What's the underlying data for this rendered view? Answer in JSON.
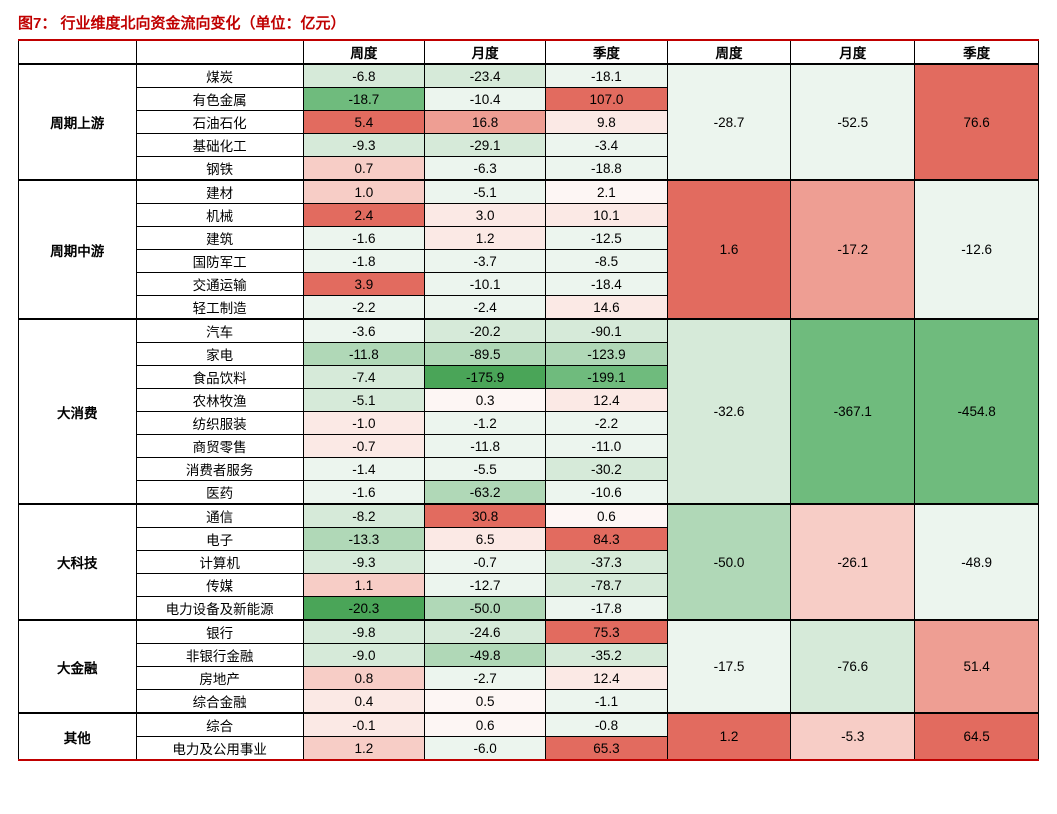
{
  "title": "图7：  行业维度北向资金流向变化（单位：亿元）",
  "headers": {
    "weekly": "周度",
    "monthly": "月度",
    "quarterly": "季度",
    "agg_weekly": "周度",
    "agg_monthly": "月度",
    "agg_quarterly": "季度"
  },
  "palette": {
    "pos_strong": "#e26b5f",
    "pos_mid": "#ee9e93",
    "pos_light": "#f7cdc6",
    "pos_faint": "#fbe9e5",
    "neutral": "#fdf6f4",
    "neg_faint": "#ecf5ee",
    "neg_light": "#d6ead9",
    "neg_mid": "#b0d8b7",
    "neg_strong": "#6fbb7d",
    "neg_max": "#4aa558",
    "agg_neutral": "#f5f5f5"
  },
  "sectors": [
    {
      "name": "周期上游",
      "agg": {
        "weekly": -28.7,
        "monthly": -52.5,
        "quarterly": 76.6
      },
      "agg_colors": {
        "weekly": "neg_faint",
        "monthly": "neg_faint",
        "quarterly": "pos_strong"
      },
      "rows": [
        {
          "ind": "煤炭",
          "weekly": -6.8,
          "monthly": -23.4,
          "quarterly": -18.1,
          "c": [
            "neg_light",
            "neg_light",
            "neg_faint"
          ]
        },
        {
          "ind": "有色金属",
          "weekly": -18.7,
          "monthly": -10.4,
          "quarterly": 107.0,
          "c": [
            "neg_strong",
            "neg_faint",
            "pos_strong"
          ]
        },
        {
          "ind": "石油石化",
          "weekly": 5.4,
          "monthly": 16.8,
          "quarterly": 9.8,
          "c": [
            "pos_strong",
            "pos_mid",
            "pos_faint"
          ]
        },
        {
          "ind": "基础化工",
          "weekly": -9.3,
          "monthly": -29.1,
          "quarterly": -3.4,
          "c": [
            "neg_light",
            "neg_light",
            "neg_faint"
          ]
        },
        {
          "ind": "钢铁",
          "weekly": 0.7,
          "monthly": -6.3,
          "quarterly": -18.8,
          "c": [
            "pos_light",
            "neg_faint",
            "neg_faint"
          ]
        }
      ]
    },
    {
      "name": "周期中游",
      "agg": {
        "weekly": 1.6,
        "monthly": -17.2,
        "quarterly": -12.6
      },
      "agg_colors": {
        "weekly": "pos_strong",
        "monthly": "pos_mid",
        "quarterly": "neg_faint"
      },
      "rows": [
        {
          "ind": "建材",
          "weekly": 1.0,
          "monthly": -5.1,
          "quarterly": 2.1,
          "c": [
            "pos_light",
            "neg_faint",
            "neutral"
          ]
        },
        {
          "ind": "机械",
          "weekly": 2.4,
          "monthly": 3.0,
          "quarterly": 10.1,
          "c": [
            "pos_strong",
            "pos_faint",
            "pos_faint"
          ]
        },
        {
          "ind": "建筑",
          "weekly": -1.6,
          "monthly": 1.2,
          "quarterly": -12.5,
          "c": [
            "neg_faint",
            "pos_faint",
            "neg_faint"
          ]
        },
        {
          "ind": "国防军工",
          "weekly": -1.8,
          "monthly": -3.7,
          "quarterly": -8.5,
          "c": [
            "neg_faint",
            "neg_faint",
            "neg_faint"
          ]
        },
        {
          "ind": "交通运输",
          "weekly": 3.9,
          "monthly": -10.1,
          "quarterly": -18.4,
          "c": [
            "pos_strong",
            "neg_faint",
            "neg_faint"
          ]
        },
        {
          "ind": "轻工制造",
          "weekly": -2.2,
          "monthly": -2.4,
          "quarterly": 14.6,
          "c": [
            "neg_faint",
            "neg_faint",
            "pos_faint"
          ]
        }
      ]
    },
    {
      "name": "大消费",
      "agg": {
        "weekly": -32.6,
        "monthly": -367.1,
        "quarterly": -454.8
      },
      "agg_colors": {
        "weekly": "neg_light",
        "monthly": "neg_strong",
        "quarterly": "neg_strong"
      },
      "rows": [
        {
          "ind": "汽车",
          "weekly": -3.6,
          "monthly": -20.2,
          "quarterly": -90.1,
          "c": [
            "neg_faint",
            "neg_light",
            "neg_light"
          ]
        },
        {
          "ind": "家电",
          "weekly": -11.8,
          "monthly": -89.5,
          "quarterly": -123.9,
          "c": [
            "neg_mid",
            "neg_mid",
            "neg_mid"
          ]
        },
        {
          "ind": "食品饮料",
          "weekly": -7.4,
          "monthly": -175.9,
          "quarterly": -199.1,
          "c": [
            "neg_light",
            "neg_max",
            "neg_strong"
          ]
        },
        {
          "ind": "农林牧渔",
          "weekly": -5.1,
          "monthly": 0.3,
          "quarterly": 12.4,
          "c": [
            "neg_light",
            "neutral",
            "pos_faint"
          ]
        },
        {
          "ind": "纺织服装",
          "weekly": -1.0,
          "monthly": -1.2,
          "quarterly": -2.2,
          "c": [
            "pos_faint",
            "neg_faint",
            "neg_faint"
          ]
        },
        {
          "ind": "商贸零售",
          "weekly": -0.7,
          "monthly": -11.8,
          "quarterly": -11.0,
          "c": [
            "pos_faint",
            "neg_faint",
            "neg_faint"
          ]
        },
        {
          "ind": "消费者服务",
          "weekly": -1.4,
          "monthly": -5.5,
          "quarterly": -30.2,
          "c": [
            "neg_faint",
            "neg_faint",
            "neg_light"
          ]
        },
        {
          "ind": "医药",
          "weekly": -1.6,
          "monthly": -63.2,
          "quarterly": -10.6,
          "c": [
            "neg_faint",
            "neg_mid",
            "neg_faint"
          ]
        }
      ]
    },
    {
      "name": "大科技",
      "agg": {
        "weekly": -50.0,
        "monthly": -26.1,
        "quarterly": -48.9
      },
      "agg_colors": {
        "weekly": "neg_mid",
        "monthly": "pos_light",
        "quarterly": "neg_faint"
      },
      "rows": [
        {
          "ind": "通信",
          "weekly": -8.2,
          "monthly": 30.8,
          "quarterly": 0.6,
          "c": [
            "neg_light",
            "pos_strong",
            "neutral"
          ]
        },
        {
          "ind": "电子",
          "weekly": -13.3,
          "monthly": 6.5,
          "quarterly": 84.3,
          "c": [
            "neg_mid",
            "pos_faint",
            "pos_strong"
          ]
        },
        {
          "ind": "计算机",
          "weekly": -9.3,
          "monthly": -0.7,
          "quarterly": -37.3,
          "c": [
            "neg_light",
            "neg_faint",
            "neg_light"
          ]
        },
        {
          "ind": "传媒",
          "weekly": 1.1,
          "monthly": -12.7,
          "quarterly": -78.7,
          "c": [
            "pos_light",
            "neg_faint",
            "neg_light"
          ]
        },
        {
          "ind": "电力设备及新能源",
          "weekly": -20.3,
          "monthly": -50.0,
          "quarterly": -17.8,
          "c": [
            "neg_max",
            "neg_mid",
            "neg_faint"
          ]
        }
      ]
    },
    {
      "name": "大金融",
      "agg": {
        "weekly": -17.5,
        "monthly": -76.6,
        "quarterly": 51.4
      },
      "agg_colors": {
        "weekly": "neg_faint",
        "monthly": "neg_light",
        "quarterly": "pos_mid"
      },
      "rows": [
        {
          "ind": "银行",
          "weekly": -9.8,
          "monthly": -24.6,
          "quarterly": 75.3,
          "c": [
            "neg_light",
            "neg_light",
            "pos_strong"
          ]
        },
        {
          "ind": "非银行金融",
          "weekly": -9.0,
          "monthly": -49.8,
          "quarterly": -35.2,
          "c": [
            "neg_light",
            "neg_mid",
            "neg_light"
          ]
        },
        {
          "ind": "房地产",
          "weekly": 0.8,
          "monthly": -2.7,
          "quarterly": 12.4,
          "c": [
            "pos_light",
            "neg_faint",
            "pos_faint"
          ]
        },
        {
          "ind": "综合金融",
          "weekly": 0.4,
          "monthly": 0.5,
          "quarterly": -1.1,
          "c": [
            "pos_faint",
            "neutral",
            "neg_faint"
          ]
        }
      ]
    },
    {
      "name": "其他",
      "agg": {
        "weekly": 1.2,
        "monthly": -5.3,
        "quarterly": 64.5
      },
      "agg_colors": {
        "weekly": "pos_strong",
        "monthly": "pos_light",
        "quarterly": "pos_strong"
      },
      "rows": [
        {
          "ind": "综合",
          "weekly": -0.1,
          "monthly": 0.6,
          "quarterly": -0.8,
          "c": [
            "pos_faint",
            "neutral",
            "neg_faint"
          ]
        },
        {
          "ind": "电力及公用事业",
          "weekly": 1.2,
          "monthly": -6.0,
          "quarterly": 65.3,
          "c": [
            "pos_light",
            "neg_faint",
            "pos_strong"
          ]
        }
      ]
    }
  ]
}
